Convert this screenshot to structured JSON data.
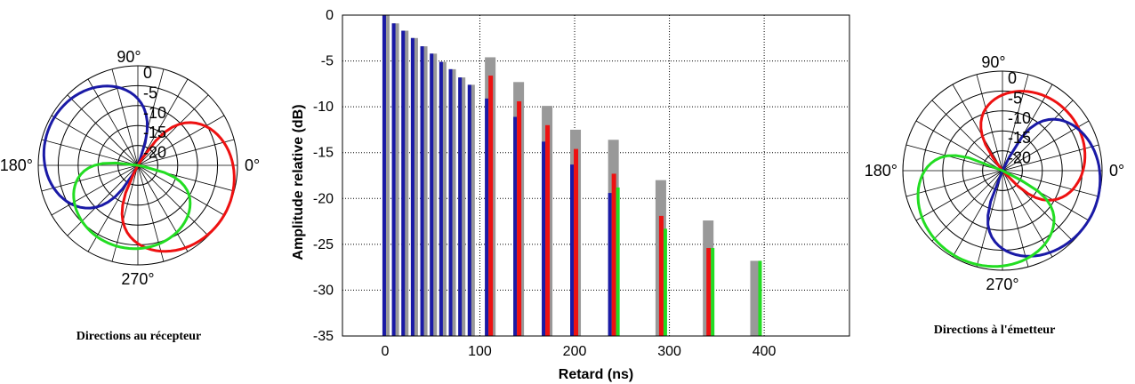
{
  "chart_data": [
    {
      "type": "bar",
      "xlabel": "Retard (ns)",
      "ylabel": "Amplitude relative (dB)",
      "xlim": [
        -45,
        490
      ],
      "ylim": [
        -35,
        0
      ],
      "xticks": [
        "0",
        "100",
        "200",
        "300",
        "400"
      ],
      "yticks": [
        "0",
        "-5",
        "-10",
        "-15",
        "-20",
        "-25",
        "-30",
        "-35"
      ],
      "grid": true,
      "colors": {
        "gray": "#999999",
        "blue": "#1a1aa6",
        "red": "#ee1111",
        "green": "#22dd22"
      },
      "dense_bars": {
        "x": [
          0,
          10,
          20,
          30,
          40,
          50,
          60,
          70,
          80,
          90
        ],
        "values": [
          0,
          -0.9,
          -1.7,
          -2.5,
          -3.4,
          -4.2,
          -5.1,
          -5.9,
          -6.8,
          -7.6
        ]
      },
      "clusters": [
        {
          "x": 110,
          "gray": -4.6,
          "blue": -9.1,
          "red": -6.6,
          "green": null
        },
        {
          "x": 140,
          "gray": -7.3,
          "blue": -11.1,
          "red": -9.4,
          "green": null
        },
        {
          "x": 170,
          "gray": -9.9,
          "blue": -13.8,
          "red": -12.0,
          "green": null
        },
        {
          "x": 200,
          "gray": -12.5,
          "blue": -16.3,
          "red": -14.6,
          "green": null
        },
        {
          "x": 240,
          "gray": -13.6,
          "blue": -19.4,
          "red": -17.3,
          "green": -18.8
        },
        {
          "x": 290,
          "gray": -18.0,
          "blue": null,
          "red": -21.9,
          "green": -23.3
        },
        {
          "x": 340,
          "gray": -22.4,
          "blue": null,
          "red": -25.4,
          "green": -25.4
        },
        {
          "x": 390,
          "gray": -26.8,
          "blue": null,
          "red": null,
          "green": -26.8
        }
      ]
    },
    {
      "type": "polar",
      "caption": "Directions au récepteur",
      "angle_labels": [
        "0°",
        "90°",
        "180°",
        "270°"
      ],
      "ring_labels": [
        "0",
        "-5",
        "-10",
        "-15",
        "-20"
      ],
      "rlim": [
        -25,
        0
      ],
      "series": [
        {
          "color": "#1a1aa6",
          "main_angle": 155,
          "peak": -0.8,
          "width": 1.8
        },
        {
          "color": "#ee1111",
          "main_angle": -30,
          "peak": 0,
          "width": 1.6
        },
        {
          "color": "#22dd22",
          "main_angle": -100,
          "peak": -4,
          "width": 1.2
        }
      ]
    },
    {
      "type": "polar",
      "caption": "Directions à l'émetteur",
      "angle_labels": [
        "0°",
        "90°",
        "180°",
        "270°"
      ],
      "ring_labels": [
        "0",
        "-5",
        "-10",
        "-15",
        "-20"
      ],
      "rlim": [
        -25,
        0
      ],
      "series": [
        {
          "color": "#ee1111",
          "main_angle": 40,
          "peak": -3,
          "width": 1.4
        },
        {
          "color": "#1a1aa6",
          "main_angle": -25,
          "peak": 0,
          "width": 1.3
        },
        {
          "color": "#22dd22",
          "main_angle": -115,
          "peak": -0.5,
          "width": 1.2
        }
      ]
    }
  ]
}
